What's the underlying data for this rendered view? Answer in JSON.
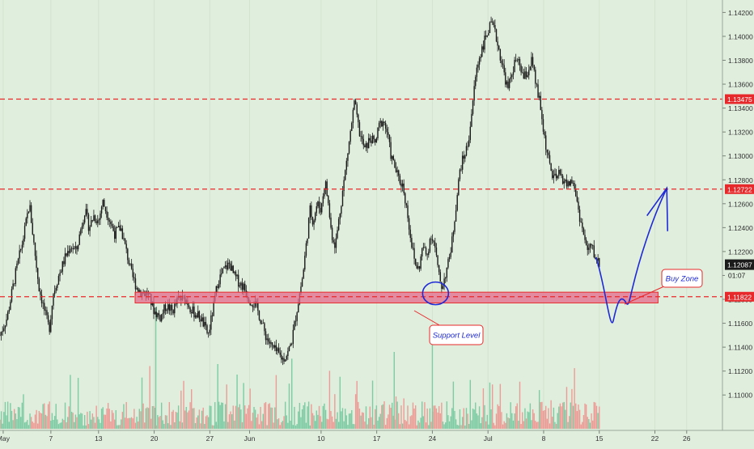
{
  "chart_data": {
    "type": "candlestick",
    "ylim": [
      1.109,
      1.1425
    ],
    "y_ticks": [
      "1.14200",
      "1.14000",
      "1.13800",
      "1.13600",
      "1.13400",
      "1.13200",
      "1.13000",
      "1.12800",
      "1.12600",
      "1.12400",
      "1.12200",
      "1.12000",
      "1.11800",
      "1.11600",
      "1.11400",
      "1.11200",
      "1.11000"
    ],
    "x_ticks": [
      {
        "label": "May",
        "day": 1
      },
      {
        "label": "7",
        "day": 7
      },
      {
        "label": "13",
        "day": 13
      },
      {
        "label": "20",
        "day": 20
      },
      {
        "label": "27",
        "day": 27
      },
      {
        "label": "Jun",
        "day": 32
      },
      {
        "label": "10",
        "day": 41
      },
      {
        "label": "17",
        "day": 48
      },
      {
        "label": "24",
        "day": 55
      },
      {
        "label": "Jul",
        "day": 62
      },
      {
        "label": "8",
        "day": 69
      },
      {
        "label": "15",
        "day": 76
      },
      {
        "label": "22",
        "day": 83
      },
      {
        "label": "26",
        "day": 87
      }
    ],
    "xlim_days": [
      0.6,
      91.5
    ],
    "close_path": [
      [
        0.6,
        1.115
      ],
      [
        1.5,
        1.1165
      ],
      [
        2.5,
        1.12
      ],
      [
        3.5,
        1.123
      ],
      [
        4.3,
        1.126
      ],
      [
        4.8,
        1.123
      ],
      [
        5.5,
        1.119
      ],
      [
        6.2,
        1.117
      ],
      [
        6.8,
        1.1155
      ],
      [
        7.3,
        1.1185
      ],
      [
        8,
        1.12
      ],
      [
        8.8,
        1.1215
      ],
      [
        9.5,
        1.1225
      ],
      [
        10.2,
        1.122
      ],
      [
        10.8,
        1.124
      ],
      [
        11.3,
        1.1255
      ],
      [
        11.8,
        1.124
      ],
      [
        12.4,
        1.125
      ],
      [
        13,
        1.1245
      ],
      [
        13.5,
        1.1262
      ],
      [
        14.2,
        1.125
      ],
      [
        15,
        1.1235
      ],
      [
        15.8,
        1.124
      ],
      [
        16.5,
        1.122
      ],
      [
        17.2,
        1.12
      ],
      [
        17.8,
        1.119
      ],
      [
        18.5,
        1.1185
      ],
      [
        19.2,
        1.1185
      ],
      [
        20,
        1.117
      ],
      [
        20.8,
        1.1165
      ],
      [
        21.5,
        1.1175
      ],
      [
        22.3,
        1.117
      ],
      [
        23,
        1.118
      ],
      [
        24,
        1.118
      ],
      [
        24.8,
        1.117
      ],
      [
        25.8,
        1.1165
      ],
      [
        26.8,
        1.115
      ],
      [
        27.5,
        1.1175
      ],
      [
        28,
        1.1195
      ],
      [
        28.8,
        1.1205
      ],
      [
        29.5,
        1.121
      ],
      [
        30,
        1.12
      ],
      [
        30.6,
        1.1195
      ],
      [
        31.3,
        1.119
      ],
      [
        32,
        1.118
      ],
      [
        32.8,
        1.1175
      ],
      [
        33.3,
        1.1165
      ],
      [
        34,
        1.115
      ],
      [
        34.8,
        1.114
      ],
      [
        35.5,
        1.1135
      ],
      [
        36.2,
        1.113
      ],
      [
        36.8,
        1.1135
      ],
      [
        37.3,
        1.1145
      ],
      [
        37.8,
        1.1165
      ],
      [
        38.3,
        1.1185
      ],
      [
        38.7,
        1.12
      ],
      [
        39.2,
        1.123
      ],
      [
        39.6,
        1.1255
      ],
      [
        40,
        1.1245
      ],
      [
        40.5,
        1.126
      ],
      [
        41,
        1.1255
      ],
      [
        41.5,
        1.128
      ],
      [
        41.9,
        1.126
      ],
      [
        42.3,
        1.1235
      ],
      [
        42.8,
        1.1225
      ],
      [
        43.3,
        1.125
      ],
      [
        43.8,
        1.1275
      ],
      [
        44.3,
        1.13
      ],
      [
        44.7,
        1.132
      ],
      [
        45.2,
        1.1345
      ],
      [
        45.8,
        1.132
      ],
      [
        46.5,
        1.1305
      ],
      [
        47.2,
        1.1315
      ],
      [
        47.8,
        1.131
      ],
      [
        48.3,
        1.1325
      ],
      [
        48.8,
        1.133
      ],
      [
        49.3,
        1.132
      ],
      [
        49.8,
        1.13
      ],
      [
        50.3,
        1.129
      ],
      [
        50.8,
        1.128
      ],
      [
        51.3,
        1.1275
      ],
      [
        51.8,
        1.1255
      ],
      [
        52.3,
        1.123
      ],
      [
        52.8,
        1.121
      ],
      [
        53.3,
        1.1205
      ],
      [
        53.8,
        1.1225
      ],
      [
        54.3,
        1.1215
      ],
      [
        54.8,
        1.1235
      ],
      [
        55.3,
        1.1225
      ],
      [
        55.8,
        1.12
      ],
      [
        56.2,
        1.119
      ],
      [
        56.6,
        1.12
      ],
      [
        57,
        1.121
      ],
      [
        57.5,
        1.123
      ],
      [
        58,
        1.126
      ],
      [
        58.5,
        1.129
      ],
      [
        59,
        1.13
      ],
      [
        59.5,
        1.131
      ],
      [
        60,
        1.134
      ],
      [
        60.5,
        1.137
      ],
      [
        61,
        1.1385
      ],
      [
        61.5,
        1.1395
      ],
      [
        62,
        1.1405
      ],
      [
        62.5,
        1.141
      ],
      [
        63,
        1.14
      ],
      [
        63.5,
        1.1385
      ],
      [
        64,
        1.137
      ],
      [
        64.5,
        1.1355
      ],
      [
        65,
        1.137
      ],
      [
        65.5,
        1.138
      ],
      [
        66,
        1.1375
      ],
      [
        66.5,
        1.1365
      ],
      [
        67,
        1.137
      ],
      [
        67.5,
        1.138
      ],
      [
        68,
        1.136
      ],
      [
        68.5,
        1.1345
      ],
      [
        69,
        1.132
      ],
      [
        69.5,
        1.13
      ],
      [
        70,
        1.1285
      ],
      [
        70.5,
        1.128
      ],
      [
        71,
        1.1285
      ],
      [
        71.5,
        1.128
      ],
      [
        72,
        1.1275
      ],
      [
        72.5,
        1.128
      ],
      [
        73,
        1.127
      ],
      [
        73.5,
        1.125
      ],
      [
        74,
        1.1235
      ],
      [
        74.5,
        1.122
      ],
      [
        75,
        1.1225
      ],
      [
        75.5,
        1.1215
      ],
      [
        76,
        1.121
      ]
    ],
    "horizontal_levels": [
      {
        "value": 1.13475,
        "label": "1.13475",
        "color": "#e8292b"
      },
      {
        "value": 1.12722,
        "label": "1.12722",
        "color": "#e8292b"
      },
      {
        "value": 1.11822,
        "label": "1.11822",
        "color": "#e8292b"
      }
    ],
    "current_price": {
      "label": "1.12087",
      "value": 1.12087,
      "timer": "01:07"
    },
    "zone": {
      "from_day": 17.6,
      "to_day": 83.4,
      "low": 1.1177,
      "high": 1.1186,
      "fill": "#e46a8c",
      "stroke": "#e8292b"
    },
    "annotations": [
      {
        "text": "Buy Zone",
        "color": "#1f2ad6"
      },
      {
        "text": "Support Level",
        "color": "#1f2ad6"
      }
    ],
    "colors": {
      "candle": "#1b1b1b",
      "vol_up": "#7ecba4",
      "vol_down": "#ec9c96",
      "drawing": "#1f2ad6"
    }
  }
}
